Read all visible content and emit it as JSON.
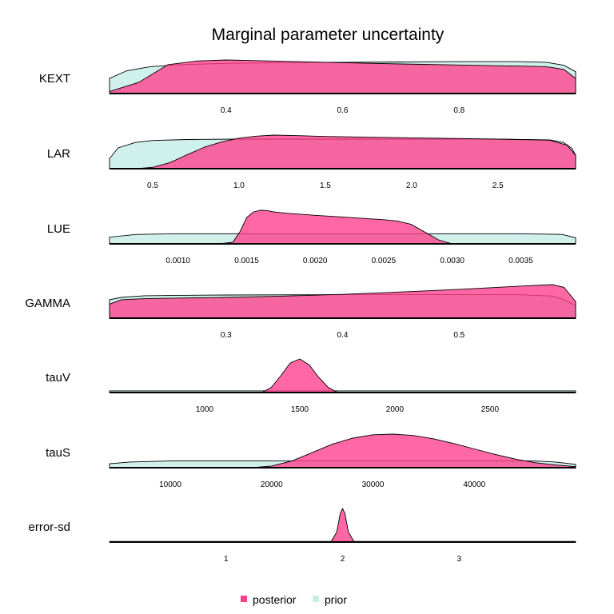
{
  "title": "Marginal parameter uncertainty",
  "legend": [
    {
      "key": "posterior",
      "label": "posterior",
      "color": "#ff3d8b",
      "opacity": 0.78
    },
    {
      "key": "prior",
      "label": "prior",
      "color": "#c8ede9",
      "opacity": 0.85
    }
  ],
  "chart_data": [
    {
      "type": "area",
      "parameter": "KEXT",
      "xlim": [
        0.2,
        1.0
      ],
      "ticks": [
        0.4,
        0.6,
        0.8
      ],
      "tick_labels": [
        "0.4",
        "0.6",
        "0.8"
      ],
      "prior": {
        "x": [
          0.2,
          0.23,
          0.27,
          0.32,
          0.4,
          0.5,
          0.6,
          0.7,
          0.8,
          0.9,
          0.95,
          0.98,
          1.0
        ],
        "y": [
          0.45,
          0.68,
          0.8,
          0.86,
          0.9,
          0.92,
          0.93,
          0.94,
          0.95,
          0.95,
          0.93,
          0.84,
          0.65
        ]
      },
      "posterior": {
        "x": [
          0.2,
          0.25,
          0.3,
          0.35,
          0.4,
          0.45,
          0.5,
          0.6,
          0.7,
          0.8,
          0.9,
          0.95,
          0.98,
          1.0
        ],
        "y": [
          0.06,
          0.33,
          0.86,
          0.97,
          1.0,
          0.98,
          0.96,
          0.92,
          0.88,
          0.85,
          0.82,
          0.8,
          0.72,
          0.45
        ]
      }
    },
    {
      "type": "area",
      "parameter": "LAR",
      "xlim": [
        0.25,
        2.95
      ],
      "ticks": [
        0.5,
        1.0,
        1.5,
        2.0,
        2.5
      ],
      "tick_labels": [
        "0.5",
        "1.0",
        "1.5",
        "2.0",
        "2.5"
      ],
      "prior": {
        "x": [
          0.25,
          0.3,
          0.4,
          0.5,
          0.7,
          1.0,
          1.5,
          2.0,
          2.5,
          2.8,
          2.88,
          2.93,
          2.95
        ],
        "y": [
          0.3,
          0.62,
          0.78,
          0.84,
          0.87,
          0.88,
          0.88,
          0.88,
          0.88,
          0.86,
          0.78,
          0.6,
          0.4
        ]
      },
      "posterior": {
        "x": [
          0.25,
          0.4,
          0.5,
          0.6,
          0.7,
          0.8,
          0.9,
          1.0,
          1.1,
          1.2,
          1.3,
          1.5,
          2.0,
          2.5,
          2.8,
          2.9,
          2.95
        ],
        "y": [
          0.0,
          0.0,
          0.04,
          0.18,
          0.42,
          0.64,
          0.8,
          0.91,
          0.97,
          1.0,
          0.99,
          0.96,
          0.92,
          0.88,
          0.85,
          0.7,
          0.4
        ]
      }
    },
    {
      "type": "area",
      "parameter": "LUE",
      "xlim": [
        0.0005,
        0.0039
      ],
      "ticks": [
        0.001,
        0.0015,
        0.002,
        0.0025,
        0.003,
        0.0035
      ],
      "tick_labels": [
        "0.0010",
        "0.0015",
        "0.0020",
        "0.0025",
        "0.0030",
        "0.0035"
      ],
      "prior": {
        "x": [
          0.0005,
          0.0007,
          0.001,
          0.0015,
          0.002,
          0.0025,
          0.003,
          0.0035,
          0.0038,
          0.0039
        ],
        "y": [
          0.2,
          0.28,
          0.3,
          0.3,
          0.3,
          0.3,
          0.3,
          0.3,
          0.28,
          0.18
        ]
      },
      "posterior": {
        "x": [
          0.0005,
          0.0013,
          0.0014,
          0.00145,
          0.0015,
          0.00155,
          0.0016,
          0.00165,
          0.0017,
          0.0018,
          0.002,
          0.0022,
          0.0025,
          0.0026,
          0.0027,
          0.0028,
          0.0029,
          0.003,
          0.0039
        ],
        "y": [
          0.0,
          0.0,
          0.05,
          0.35,
          0.78,
          0.95,
          1.0,
          0.99,
          0.95,
          0.91,
          0.85,
          0.8,
          0.72,
          0.68,
          0.58,
          0.35,
          0.12,
          0.0,
          0.0
        ]
      }
    },
    {
      "type": "area",
      "parameter": "GAMMA",
      "xlim": [
        0.2,
        0.6
      ],
      "ticks": [
        0.3,
        0.4,
        0.5
      ],
      "tick_labels": [
        "0.3",
        "0.4",
        "0.5"
      ],
      "prior": {
        "x": [
          0.2,
          0.21,
          0.23,
          0.26,
          0.3,
          0.4,
          0.5,
          0.55,
          0.58,
          0.59,
          0.6
        ],
        "y": [
          0.55,
          0.62,
          0.67,
          0.68,
          0.69,
          0.7,
          0.7,
          0.7,
          0.66,
          0.55,
          0.38
        ]
      },
      "posterior": {
        "x": [
          0.2,
          0.21,
          0.23,
          0.26,
          0.3,
          0.35,
          0.4,
          0.45,
          0.5,
          0.55,
          0.58,
          0.59,
          0.6
        ],
        "y": [
          0.42,
          0.55,
          0.58,
          0.6,
          0.62,
          0.66,
          0.71,
          0.78,
          0.86,
          0.95,
          1.0,
          0.92,
          0.5
        ]
      }
    },
    {
      "type": "area",
      "parameter": "tauV",
      "xlim": [
        500,
        2950
      ],
      "ticks": [
        1000,
        1500,
        2000,
        2500
      ],
      "tick_labels": [
        "1000",
        "1500",
        "2000",
        "2500"
      ],
      "prior": {
        "x": [
          500,
          2950
        ],
        "y": [
          0.05,
          0.05
        ]
      },
      "posterior": {
        "x": [
          500,
          1300,
          1350,
          1400,
          1450,
          1500,
          1550,
          1600,
          1650,
          1700,
          2950
        ],
        "y": [
          0.0,
          0.0,
          0.15,
          0.5,
          0.88,
          1.0,
          0.82,
          0.45,
          0.15,
          0.0,
          0.0
        ]
      }
    },
    {
      "type": "area",
      "parameter": "tauS",
      "xlim": [
        4000,
        50000
      ],
      "ticks": [
        10000,
        20000,
        30000,
        40000
      ],
      "tick_labels": [
        "10000",
        "20000",
        "30000",
        "40000"
      ],
      "prior": {
        "x": [
          4000,
          6000,
          10000,
          20000,
          30000,
          40000,
          46000,
          48000,
          50000
        ],
        "y": [
          0.12,
          0.17,
          0.2,
          0.2,
          0.2,
          0.2,
          0.2,
          0.17,
          0.1
        ]
      },
      "posterior": {
        "x": [
          4000,
          18000,
          20000,
          22000,
          24000,
          26000,
          28000,
          30000,
          32000,
          34000,
          36000,
          38000,
          40000,
          42000,
          44000,
          46000,
          48000,
          50000
        ],
        "y": [
          0.0,
          0.0,
          0.05,
          0.2,
          0.45,
          0.7,
          0.88,
          0.98,
          1.0,
          0.96,
          0.86,
          0.72,
          0.56,
          0.4,
          0.26,
          0.15,
          0.08,
          0.03
        ]
      }
    },
    {
      "type": "area",
      "parameter": "error-sd",
      "xlim": [
        0.0,
        4.0
      ],
      "ticks": [
        1,
        2,
        3
      ],
      "tick_labels": [
        "1",
        "2",
        "3"
      ],
      "prior": {
        "x": [
          0.0,
          4.0
        ],
        "y": [
          0.02,
          0.02
        ]
      },
      "posterior": {
        "x": [
          0.0,
          1.9,
          1.95,
          1.98,
          2.0,
          2.02,
          2.05,
          2.1,
          4.0
        ],
        "y": [
          0.0,
          0.0,
          0.3,
          0.85,
          1.0,
          0.85,
          0.3,
          0.0,
          0.0
        ]
      }
    }
  ]
}
